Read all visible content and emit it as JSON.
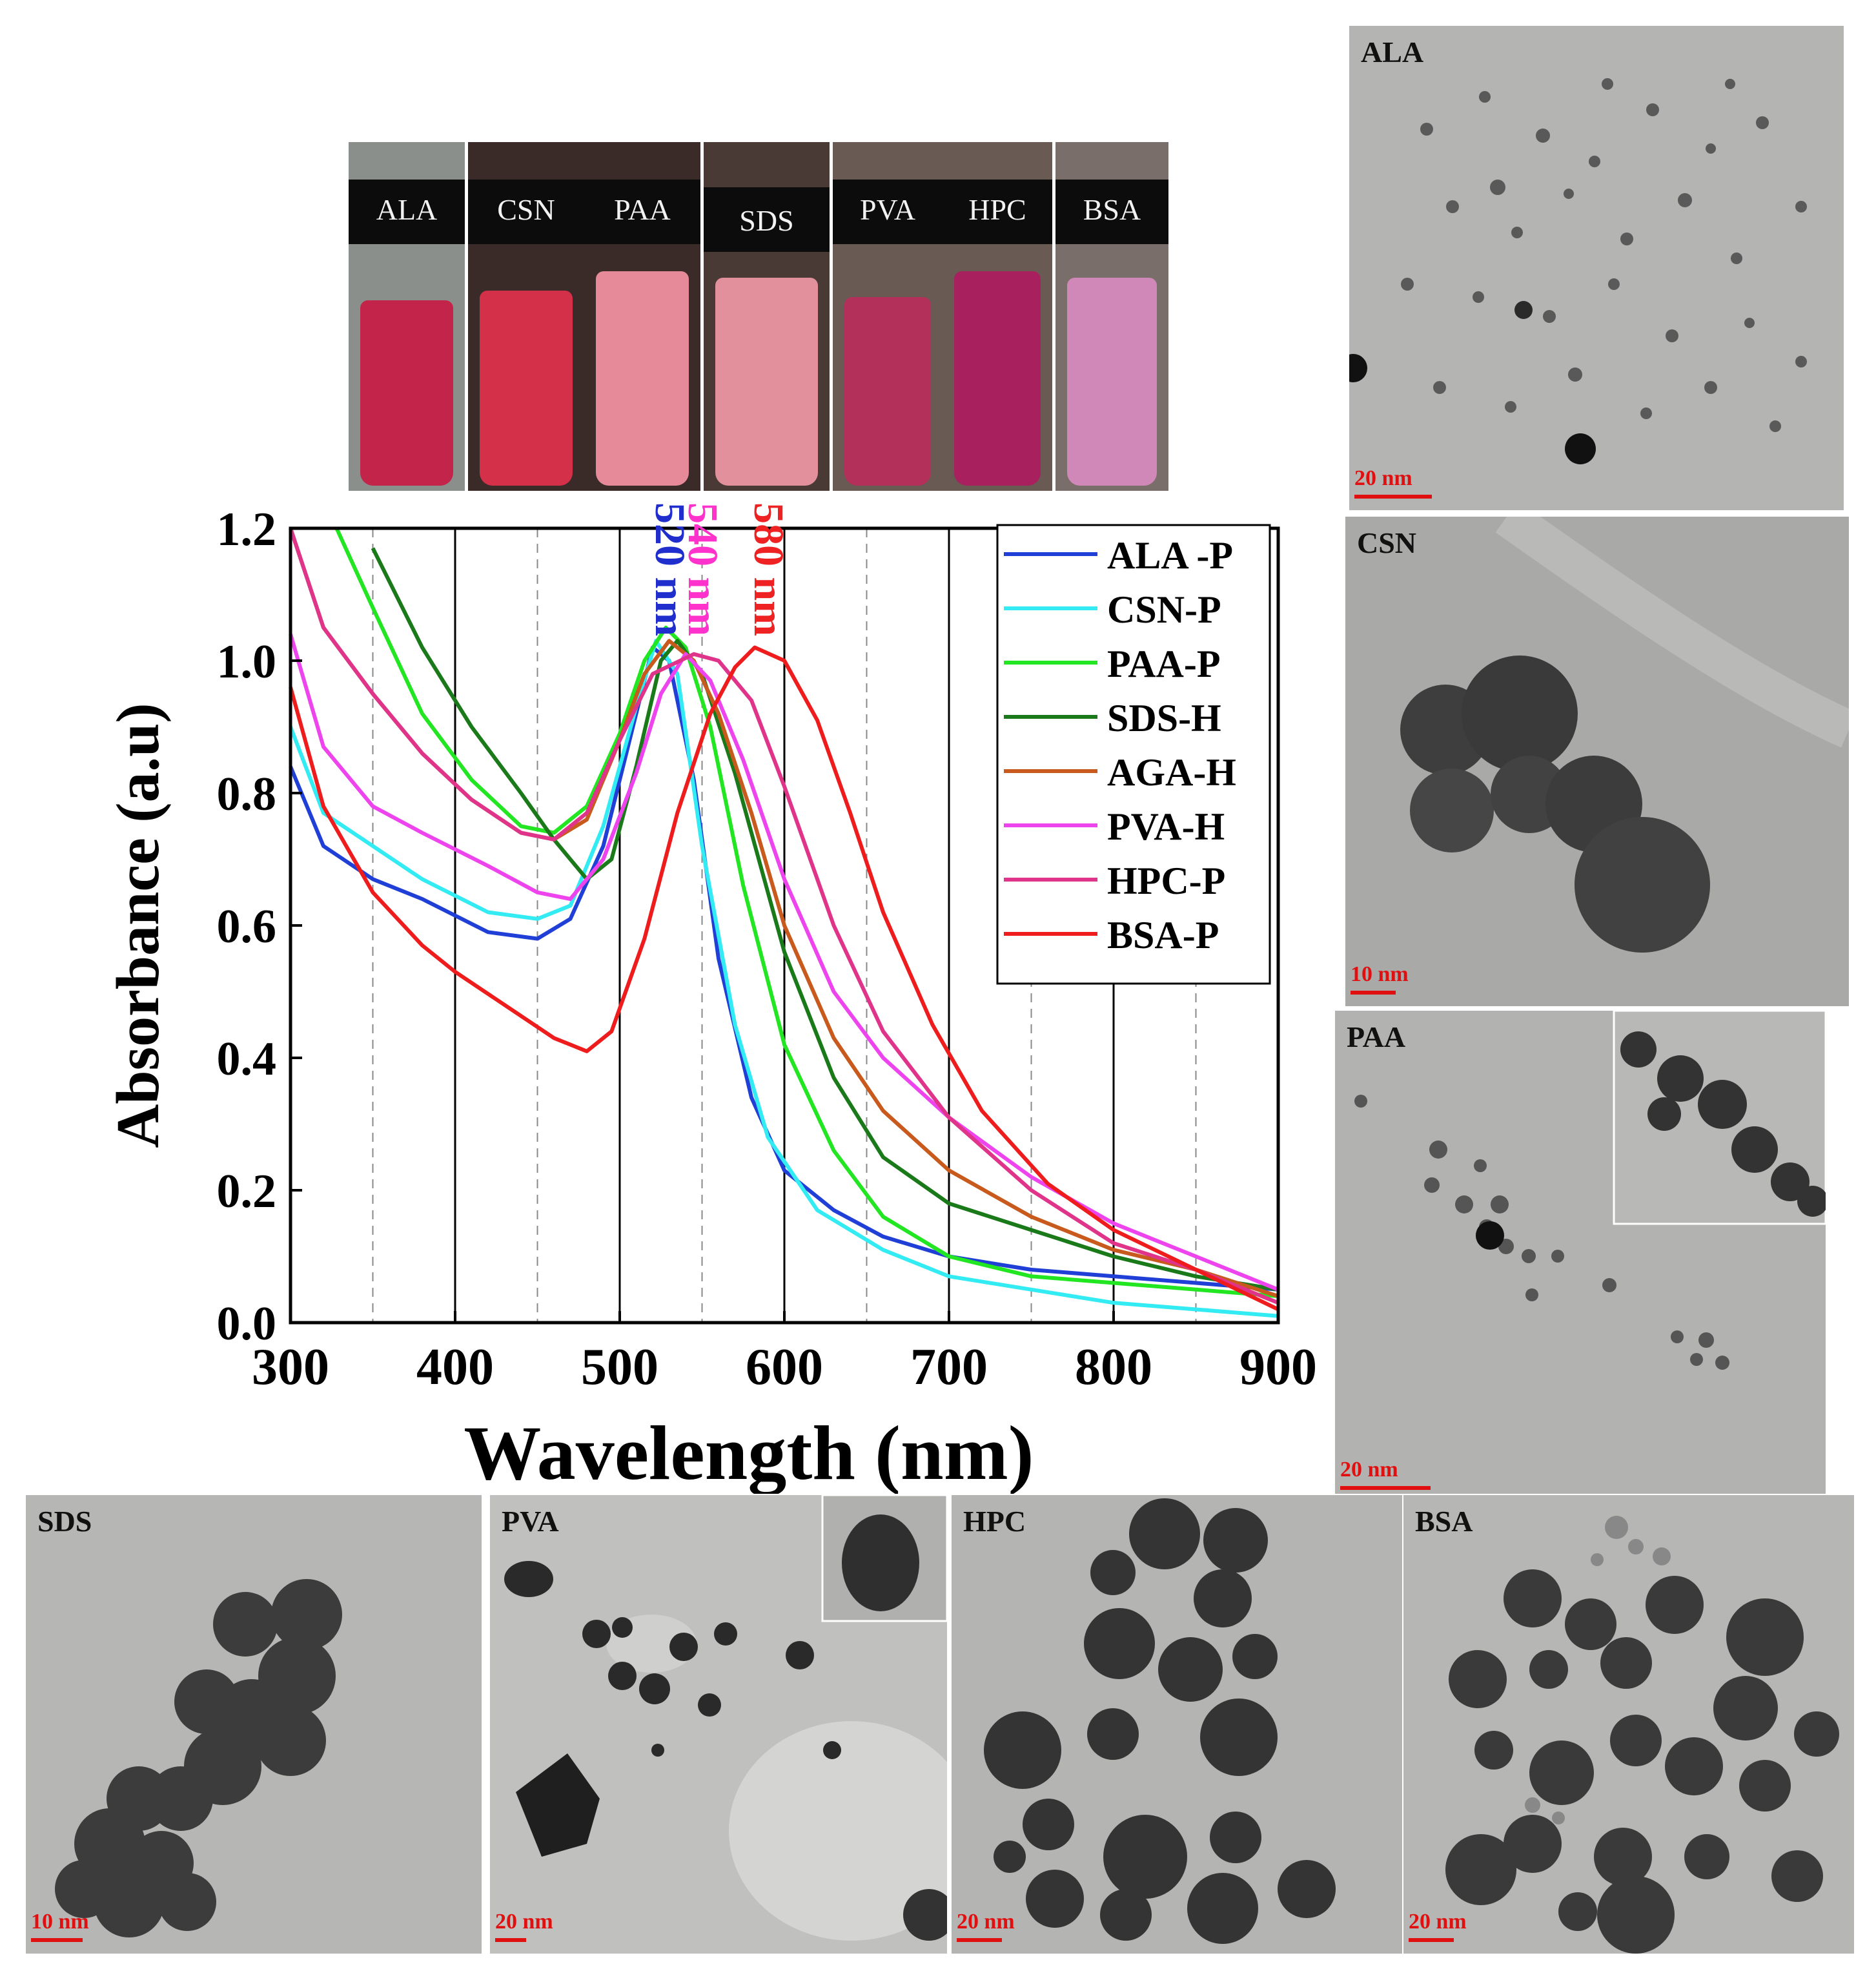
{
  "vials": [
    {
      "label": "ALA",
      "color": "#c2244a"
    },
    {
      "label": "CSN",
      "color": "#d4304a"
    },
    {
      "label": "PAA",
      "color": "#e68a9a"
    },
    {
      "label": "SDS",
      "color": "#e2909c"
    },
    {
      "label": "PVA",
      "color": "#b3305a"
    },
    {
      "label": "HPC",
      "color": "#a8205e"
    },
    {
      "label": "BSA",
      "color": "#cf88b8"
    }
  ],
  "tem_panels": {
    "ala": {
      "label": "ALA",
      "scale": "20 nm"
    },
    "csn": {
      "label": "CSN",
      "scale": "10 nm"
    },
    "paa": {
      "label": "PAA",
      "scale": "20 nm"
    },
    "sds": {
      "label": "SDS",
      "scale": "10 nm"
    },
    "pva": {
      "label": "PVA",
      "scale": "20 nm"
    },
    "hpc": {
      "label": "HPC",
      "scale": "20 nm"
    },
    "bsa": {
      "label": "BSA",
      "scale": "20 nm"
    }
  },
  "chart_data": {
    "type": "line",
    "xlabel": "Wavelength (nm)",
    "ylabel": "Absorbance (a.u)",
    "xlim": [
      300,
      900
    ],
    "ylim": [
      0.0,
      1.2
    ],
    "xticks": [
      300,
      400,
      500,
      600,
      700,
      800,
      900
    ],
    "yticks": [
      0.0,
      0.2,
      0.4,
      0.6,
      0.8,
      1.0,
      1.2
    ],
    "xtick_labels": [
      "300",
      "400",
      "500",
      "600",
      "700",
      "800",
      "900"
    ],
    "ytick_labels": [
      "0.0",
      "0.2",
      "0.4",
      "0.6",
      "0.8",
      "1.0",
      "1.2"
    ],
    "solid_gridlines_x": [
      400,
      500,
      600,
      700,
      800
    ],
    "dashed_gridlines_x": [
      350,
      450,
      550,
      650,
      750,
      850
    ],
    "legend_position": "top-right",
    "annotations": [
      {
        "text": "520 nm",
        "x": 520,
        "color": "#1f2ecc"
      },
      {
        "text": "540 nm",
        "x": 540,
        "color": "#ff33cc"
      },
      {
        "text": "580 nm",
        "x": 580,
        "color": "#ee2222"
      }
    ],
    "series": [
      {
        "name": "ALA -P",
        "color": "#1f3fd6",
        "points": [
          [
            300,
            0.84
          ],
          [
            320,
            0.72
          ],
          [
            350,
            0.67
          ],
          [
            380,
            0.64
          ],
          [
            420,
            0.59
          ],
          [
            450,
            0.58
          ],
          [
            470,
            0.61
          ],
          [
            490,
            0.72
          ],
          [
            510,
            0.92
          ],
          [
            520,
            1.02
          ],
          [
            530,
            1.0
          ],
          [
            545,
            0.82
          ],
          [
            560,
            0.55
          ],
          [
            580,
            0.34
          ],
          [
            600,
            0.23
          ],
          [
            630,
            0.17
          ],
          [
            660,
            0.13
          ],
          [
            700,
            0.1
          ],
          [
            750,
            0.08
          ],
          [
            800,
            0.07
          ],
          [
            850,
            0.06
          ],
          [
            900,
            0.05
          ]
        ]
      },
      {
        "name": "CSN-P",
        "color": "#33ebf2",
        "points": [
          [
            300,
            0.9
          ],
          [
            320,
            0.77
          ],
          [
            350,
            0.72
          ],
          [
            380,
            0.67
          ],
          [
            420,
            0.62
          ],
          [
            450,
            0.61
          ],
          [
            470,
            0.63
          ],
          [
            490,
            0.75
          ],
          [
            510,
            0.93
          ],
          [
            522,
            1.03
          ],
          [
            535,
            0.98
          ],
          [
            550,
            0.72
          ],
          [
            570,
            0.45
          ],
          [
            590,
            0.28
          ],
          [
            620,
            0.17
          ],
          [
            660,
            0.11
          ],
          [
            700,
            0.07
          ],
          [
            750,
            0.05
          ],
          [
            800,
            0.03
          ],
          [
            850,
            0.02
          ],
          [
            900,
            0.01
          ]
        ]
      },
      {
        "name": "PAA-P",
        "color": "#22e622",
        "points": [
          [
            328,
            1.2
          ],
          [
            350,
            1.08
          ],
          [
            380,
            0.92
          ],
          [
            410,
            0.82
          ],
          [
            440,
            0.75
          ],
          [
            460,
            0.74
          ],
          [
            480,
            0.78
          ],
          [
            500,
            0.89
          ],
          [
            515,
            1.0
          ],
          [
            528,
            1.05
          ],
          [
            540,
            1.02
          ],
          [
            555,
            0.9
          ],
          [
            575,
            0.66
          ],
          [
            600,
            0.42
          ],
          [
            630,
            0.26
          ],
          [
            660,
            0.16
          ],
          [
            700,
            0.1
          ],
          [
            750,
            0.07
          ],
          [
            800,
            0.06
          ],
          [
            850,
            0.05
          ],
          [
            900,
            0.04
          ]
        ]
      },
      {
        "name": "SDS-H",
        "color": "#1a7a1a",
        "points": [
          [
            350,
            1.17
          ],
          [
            380,
            1.02
          ],
          [
            410,
            0.9
          ],
          [
            440,
            0.8
          ],
          [
            460,
            0.73
          ],
          [
            480,
            0.67
          ],
          [
            495,
            0.7
          ],
          [
            510,
            0.84
          ],
          [
            525,
            1.0
          ],
          [
            535,
            1.03
          ],
          [
            550,
            0.98
          ],
          [
            570,
            0.83
          ],
          [
            600,
            0.56
          ],
          [
            630,
            0.37
          ],
          [
            660,
            0.25
          ],
          [
            700,
            0.18
          ],
          [
            750,
            0.14
          ],
          [
            800,
            0.1
          ],
          [
            850,
            0.07
          ],
          [
            900,
            0.05
          ]
        ]
      },
      {
        "name": "AGA-H",
        "color": "#c85a1e",
        "points": [
          [
            300,
            1.2
          ],
          [
            320,
            1.05
          ],
          [
            350,
            0.95
          ],
          [
            380,
            0.86
          ],
          [
            410,
            0.79
          ],
          [
            440,
            0.74
          ],
          [
            460,
            0.73
          ],
          [
            480,
            0.76
          ],
          [
            500,
            0.88
          ],
          [
            515,
            0.98
          ],
          [
            530,
            1.03
          ],
          [
            545,
            1.0
          ],
          [
            560,
            0.92
          ],
          [
            580,
            0.77
          ],
          [
            600,
            0.6
          ],
          [
            630,
            0.43
          ],
          [
            660,
            0.32
          ],
          [
            700,
            0.23
          ],
          [
            750,
            0.16
          ],
          [
            800,
            0.11
          ],
          [
            850,
            0.08
          ],
          [
            900,
            0.04
          ]
        ]
      },
      {
        "name": "PVA-H",
        "color": "#ee44ee",
        "points": [
          [
            300,
            1.04
          ],
          [
            320,
            0.87
          ],
          [
            350,
            0.78
          ],
          [
            380,
            0.74
          ],
          [
            420,
            0.69
          ],
          [
            450,
            0.65
          ],
          [
            470,
            0.64
          ],
          [
            490,
            0.7
          ],
          [
            510,
            0.83
          ],
          [
            525,
            0.95
          ],
          [
            540,
            1.01
          ],
          [
            555,
            0.97
          ],
          [
            575,
            0.85
          ],
          [
            600,
            0.67
          ],
          [
            630,
            0.5
          ],
          [
            660,
            0.4
          ],
          [
            700,
            0.31
          ],
          [
            750,
            0.22
          ],
          [
            800,
            0.15
          ],
          [
            850,
            0.1
          ],
          [
            900,
            0.05
          ]
        ]
      },
      {
        "name": "HPC-P",
        "color": "#e0338a",
        "points": [
          [
            300,
            1.2
          ],
          [
            320,
            1.05
          ],
          [
            350,
            0.95
          ],
          [
            380,
            0.86
          ],
          [
            410,
            0.79
          ],
          [
            440,
            0.74
          ],
          [
            460,
            0.73
          ],
          [
            480,
            0.77
          ],
          [
            500,
            0.88
          ],
          [
            520,
            0.98
          ],
          [
            545,
            1.01
          ],
          [
            560,
            1.0
          ],
          [
            580,
            0.94
          ],
          [
            600,
            0.81
          ],
          [
            630,
            0.6
          ],
          [
            660,
            0.44
          ],
          [
            700,
            0.31
          ],
          [
            750,
            0.2
          ],
          [
            800,
            0.12
          ],
          [
            850,
            0.08
          ],
          [
            900,
            0.03
          ]
        ]
      },
      {
        "name": "BSA-P",
        "color": "#ee1c1c",
        "points": [
          [
            300,
            0.96
          ],
          [
            320,
            0.78
          ],
          [
            350,
            0.65
          ],
          [
            380,
            0.57
          ],
          [
            400,
            0.53
          ],
          [
            430,
            0.48
          ],
          [
            460,
            0.43
          ],
          [
            480,
            0.41
          ],
          [
            495,
            0.44
          ],
          [
            515,
            0.58
          ],
          [
            535,
            0.77
          ],
          [
            555,
            0.92
          ],
          [
            570,
            0.99
          ],
          [
            582,
            1.02
          ],
          [
            600,
            1.0
          ],
          [
            620,
            0.91
          ],
          [
            640,
            0.77
          ],
          [
            660,
            0.62
          ],
          [
            690,
            0.45
          ],
          [
            720,
            0.32
          ],
          [
            760,
            0.21
          ],
          [
            800,
            0.14
          ],
          [
            850,
            0.08
          ],
          [
            900,
            0.02
          ]
        ]
      }
    ]
  }
}
